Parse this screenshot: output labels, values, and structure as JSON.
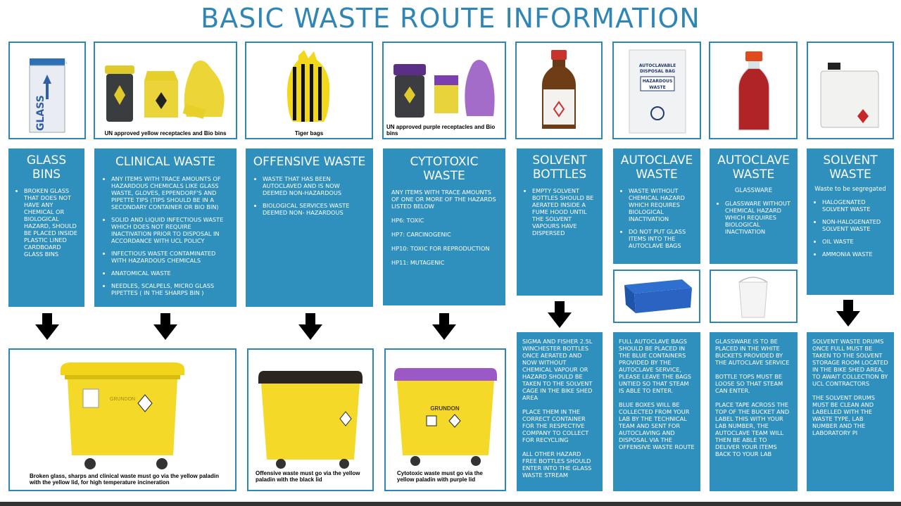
{
  "title": "BASIC WASTE ROUTE INFORMATION",
  "images": {
    "glass_bin": "GLASS",
    "clinical_caption": "UN approved yellow receptacles and Bio bins",
    "tiger_caption": "Tiger bags",
    "cyto_caption": "UN approved purple receptacles and Bio bins",
    "autoclave_bag_lines": [
      "AUTOCLAVABLE",
      "DISPOSAL BAG",
      "HAZARDOUS",
      "WASTE"
    ]
  },
  "columns": {
    "glass": {
      "header": "GLASS BINS",
      "bullets": [
        "Broken glass that does not have any chemical or biological hazard, should be placed inside plastic lined cardboard glass bins"
      ]
    },
    "clinical": {
      "header": "CLINICAL WASTE",
      "bullets": [
        "Any items with trace amounts of hazardous chemicals like glass waste, gloves, Eppendorf's and pipette tips (tips should be in a secondary container or bio bin)",
        "Solid and liquid infectious waste which does not require inactivation prior to disposal in accordance with UCL policy",
        "Infectious waste contaminated with hazardous chemicals",
        "Anatomical waste",
        "Needles, scalpels, micro glass pipettes ( in the sharps bin )"
      ]
    },
    "offensive": {
      "header": "OFFENSIVE WASTE",
      "bullets": [
        "Waste that has been autoclaved and is now deemed non-hazardous",
        "Biological services waste deemed non- hazardous"
      ]
    },
    "cytotoxic": {
      "header": "CYTOTOXIC WASTE",
      "intro": "Any items with trace amounts of one or more of the hazards listed below",
      "bullets": [
        "HP6: Toxic",
        "HP7: Carcinogenic",
        "HP10: Toxic for reproduction",
        "HP11: Mutagenic"
      ]
    },
    "solvent_bottles": {
      "header": "SOLVENT BOTTLES",
      "bullets": [
        "Empty solvent bottles should be aerated inside a fume hood until the solvent vapours have dispersed"
      ]
    },
    "autoclave1": {
      "header": "AUTOCLAVE WASTE",
      "bullets": [
        "Waste without chemical hazard which requires biological inactivation",
        "Do not put glass items into the autoclave bags"
      ]
    },
    "autoclave2": {
      "header": "AUTOCLAVE WASTE",
      "sub": "GLASSWARE",
      "bullets": [
        "Glassware without chemical hazard which requires biological inactivation"
      ]
    },
    "solvent_waste": {
      "header": "SOLVENT WASTE",
      "sub": "Waste to be segregated",
      "bullets": [
        "Halogenated solvent waste",
        "Non-halogenated solvent waste",
        "Oil waste",
        "Ammonia waste"
      ]
    }
  },
  "bottom": {
    "glass_clinical_caption": "Broken glass, sharps and clinical waste must go via the yellow paladin with the yellow lid, for high temperature incineration",
    "offensive_caption": "Offensive waste must go via the yellow paladin with the black lid",
    "cyto_caption": "Cytotoxic waste must go via the yellow paladin with purple lid",
    "bin_brand": "GRUNDON",
    "solvent_bottles_text": [
      "Sigma and Fisher 2.5L Winchester bottles once aerated and now without chemical vapour or hazard should be taken to the solvent cage in the bike shed area",
      "Place them in the correct container for the respective company to collect for recycling",
      "All other hazard free bottles should enter into the glass waste stream"
    ],
    "autoclave1_text": [
      "Full autoclave bags should be placed in the blue containers provided by the autoclave service, please leave the bags untied so that steam is able to enter.",
      "Blue boxes will be collected from your lab by the technical team and sent for autoclaving and disposal via the offensive waste route"
    ],
    "autoclave2_text": [
      "Glassware is to be placed in the white buckets provided by the autoclave service",
      "Bottle tops must be loose so that steam can enter.",
      "Place tape across the top of the bucket and label this with your lab number, the autoclave team will then be able to deliver your items back to your lab"
    ],
    "solvent_waste_text": [
      "Solvent waste drums once full must be taken to the solvent storage room located in the bike shed area, to await collection by UCL contractors",
      "The solvent drums must be clean and labelled with the waste type, lab number and the laboratory PI"
    ]
  },
  "colors": {
    "accent": "#2f8fbd",
    "title": "#2f86b5",
    "yellow": "#f2d41a",
    "purple": "#9b59c6"
  }
}
